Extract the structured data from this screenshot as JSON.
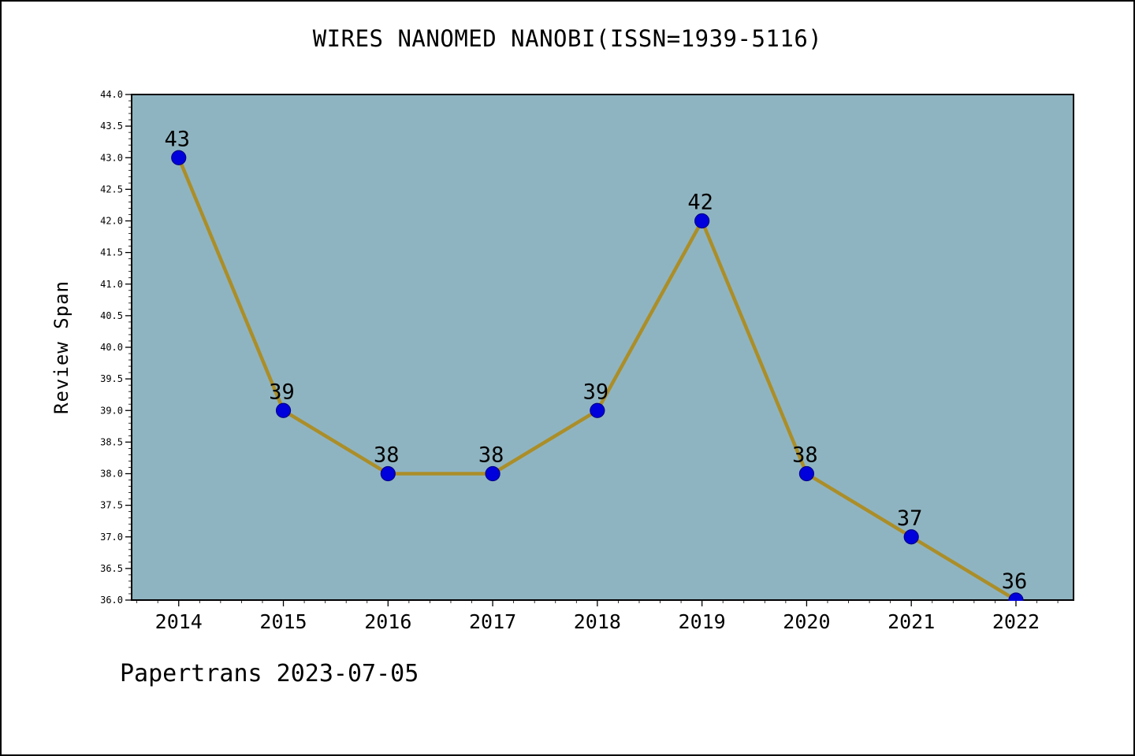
{
  "page": {
    "footer": "Papertrans 2023-07-05"
  },
  "chart_data": {
    "type": "line",
    "title": "WIRES NANOMED NANOBI(ISSN=1939-5116)",
    "xlabel": "",
    "ylabel": "Review Span",
    "x": [
      2014,
      2015,
      2016,
      2017,
      2018,
      2019,
      2020,
      2021,
      2022
    ],
    "values": [
      43,
      39,
      38,
      38,
      39,
      42,
      38,
      37,
      36
    ],
    "point_labels": [
      "43",
      "39",
      "38",
      "38",
      "39",
      "42",
      "38",
      "37",
      "36"
    ],
    "xticks": [
      "2014",
      "2015",
      "2016",
      "2017",
      "2018",
      "2019",
      "2020",
      "2021",
      "2022"
    ],
    "yticks": [
      "36.0",
      "36.5",
      "37.0",
      "37.5",
      "38.0",
      "38.5",
      "39.0",
      "39.5",
      "40.0",
      "40.5",
      "41.0",
      "41.5",
      "42.0",
      "42.5",
      "43.0",
      "43.5",
      "44.0"
    ],
    "ylim": [
      36.0,
      44.0
    ],
    "xlim": [
      2013.55,
      2022.55
    ],
    "minor_tick_step_y": 0.1,
    "minor_tick_step_x": 0.2,
    "grid": false,
    "legend": null,
    "colors": {
      "plot_bg": "#8fb4c1",
      "line": "#ab8e28",
      "marker": "#0000dd",
      "marker_edge": "#00008b",
      "axis": "#000000",
      "text": "#000000",
      "page_bg": "#ffffff"
    }
  }
}
